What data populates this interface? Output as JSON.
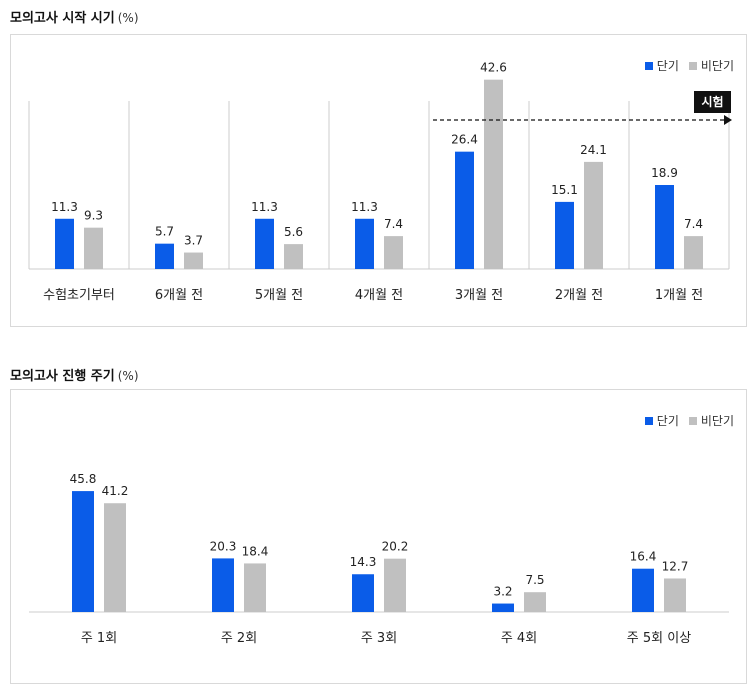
{
  "colors": {
    "short": "#0a5ce8",
    "long": "#c0c0c0",
    "axis": "#cccccc",
    "marker_bg": "#111111"
  },
  "legend": {
    "short_label": "단기",
    "long_label": "비단기"
  },
  "chart1": {
    "title": "모의고사 시작 시기",
    "unit": "(%)",
    "marker_label": "시험"
  },
  "chart2": {
    "title": "모의고사 진행 주기",
    "unit": "(%)"
  },
  "chart_data": [
    {
      "type": "bar",
      "title": "모의고사 시작 시기 (%)",
      "categories": [
        "수험초기부터",
        "6개월 전",
        "5개월 전",
        "4개월 전",
        "3개월 전",
        "2개월 전",
        "1개월 전"
      ],
      "series": [
        {
          "name": "단기",
          "values": [
            11.3,
            5.7,
            11.3,
            11.3,
            26.4,
            15.1,
            18.9
          ]
        },
        {
          "name": "비단기",
          "values": [
            9.3,
            3.7,
            5.6,
            7.4,
            42.6,
            24.1,
            7.4
          ]
        }
      ],
      "ylim": [
        0,
        45
      ],
      "grid": false,
      "legend": "top-right",
      "annotation": "시험"
    },
    {
      "type": "bar",
      "title": "모의고사 진행 주기 (%)",
      "categories": [
        "주 1회",
        "주 2회",
        "주 3회",
        "주 4회",
        "주 5회 이상"
      ],
      "series": [
        {
          "name": "단기",
          "values": [
            45.8,
            20.3,
            14.3,
            3.2,
            16.4
          ]
        },
        {
          "name": "비단기",
          "values": [
            41.2,
            18.4,
            20.2,
            7.5,
            12.7
          ]
        }
      ],
      "ylim": [
        0,
        50
      ],
      "grid": false,
      "legend": "top-right"
    }
  ]
}
